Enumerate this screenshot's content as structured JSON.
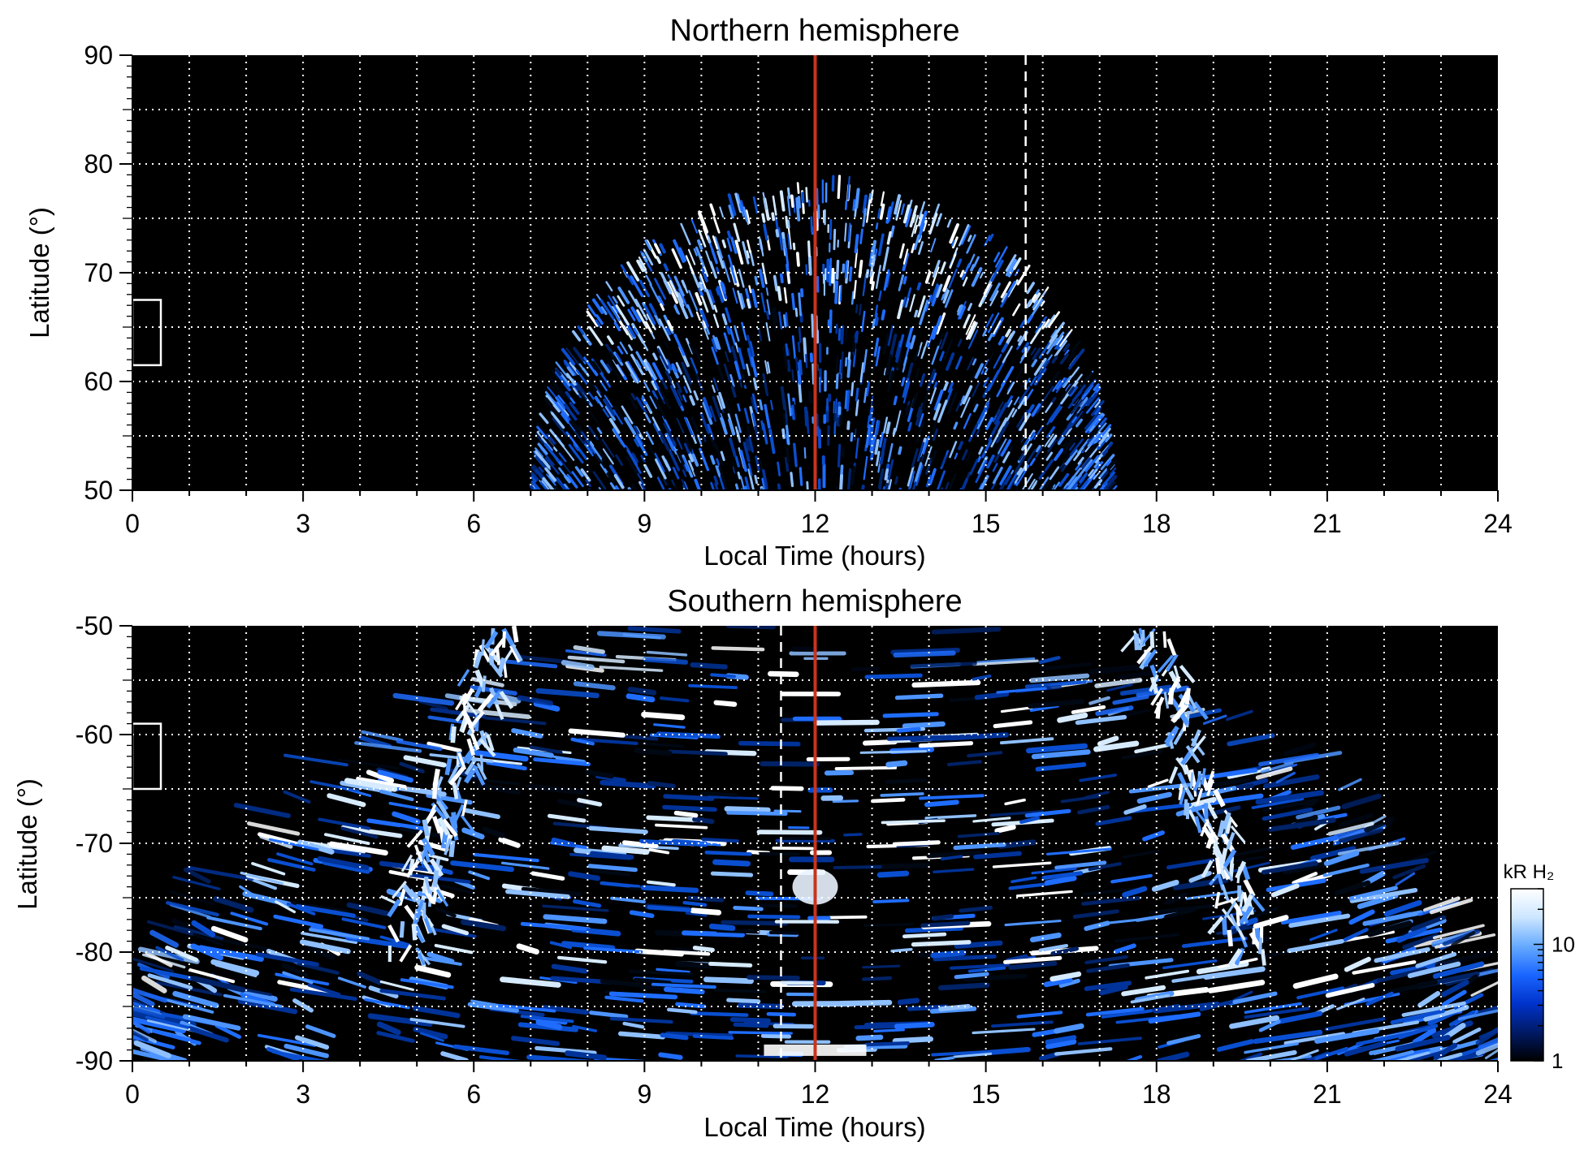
{
  "chart_data": [
    {
      "type": "heatmap",
      "title": "Northern hemisphere",
      "xlabel": "Local Time (hours)",
      "ylabel": "Latitude (°)",
      "xlim": [
        0,
        24
      ],
      "ylim": [
        50,
        90
      ],
      "x_ticks": [
        "0",
        "3",
        "6",
        "9",
        "12",
        "15",
        "18",
        "21",
        "24"
      ],
      "y_ticks": [
        "50",
        "60",
        "70",
        "80",
        "90"
      ],
      "grid": true,
      "background": "#000000",
      "emission": {
        "lt_range": [
          7.0,
          17.3
        ],
        "lat_range": [
          50,
          79
        ],
        "bright_oval_lat": [
          64,
          78
        ],
        "description_none": ""
      },
      "reference_lines": [
        {
          "x": 12.0,
          "style": "solid",
          "color": "#c8341c"
        },
        {
          "x": 15.7,
          "style": "dashed",
          "color": "#ffffff",
          "lat_range": [
            50,
            90
          ]
        }
      ],
      "box": {
        "x": [
          0,
          0.5
        ],
        "y": [
          61.5,
          67.5
        ]
      }
    },
    {
      "type": "heatmap",
      "title": "Southern hemisphere",
      "xlabel": "Local Time (hours)",
      "ylabel": "Latitude (°)",
      "xlim": [
        0,
        24
      ],
      "ylim": [
        -90,
        -50
      ],
      "x_ticks": [
        "0",
        "3",
        "6",
        "9",
        "12",
        "15",
        "18",
        "21",
        "24"
      ],
      "y_ticks": [
        "-50",
        "-60",
        "-70",
        "-80",
        "-90"
      ],
      "grid": true,
      "background": "#000000",
      "emission": {
        "lt_range": [
          0,
          24
        ],
        "bright_oval_lt": [
          6.5,
          17.9
        ],
        "bright_spot": {
          "lt": 12.0,
          "lat": -74
        }
      },
      "reference_lines": [
        {
          "x": 12.0,
          "style": "solid",
          "color": "#c8341c"
        },
        {
          "x": 11.4,
          "style": "dashed",
          "color": "#ffffff",
          "lat_range": [
            -90,
            -50
          ]
        }
      ],
      "box": {
        "x": [
          0,
          0.5
        ],
        "y": [
          -65,
          -59
        ]
      }
    }
  ],
  "colorbar": {
    "label": "kR H₂",
    "tick_labels": [
      "1",
      "10"
    ],
    "tick_values": [
      1,
      10
    ],
    "range": [
      1,
      30
    ],
    "scale": "log",
    "colors": [
      "#000000",
      "#001a66",
      "#0033cc",
      "#1a66ff",
      "#66aaff",
      "#cce6ff",
      "#ffffff"
    ]
  }
}
